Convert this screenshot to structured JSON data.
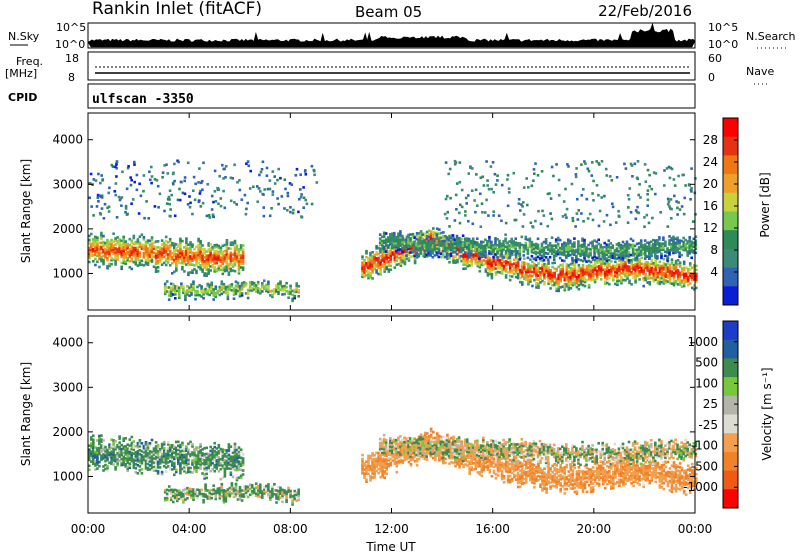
{
  "header": {
    "station": "Rankin Inlet (fitACF)",
    "beam": "Beam 05",
    "date": "22/Feb/2016"
  },
  "noise_panel": {
    "left_label": "N.Sky",
    "right_label": "N.Search",
    "left_ticks": [
      "10^5",
      "10^0"
    ],
    "right_ticks": [
      "10^5",
      "10^0"
    ]
  },
  "freq_panel": {
    "left_label_1": "Freq.",
    "left_label_2": "[MHz]",
    "right_label": "Nave",
    "left_ticks": [
      "18",
      "8"
    ],
    "right_ticks": [
      "60",
      "0"
    ]
  },
  "cpid_panel": {
    "label": "CPID",
    "program": "ulfscan -3350"
  },
  "colors": {
    "power_scale": [
      "#0a1ed8",
      "#2f64b4",
      "#3c8a78",
      "#2e8b57",
      "#78c850",
      "#c8d23c",
      "#f0a028",
      "#f07814",
      "#e63214",
      "#ff0000"
    ],
    "velocity_scale": [
      "#1e3cc8",
      "#2060a0",
      "#3c8c50",
      "#78c83c",
      "#b4b4a8",
      "#dcdcd2",
      "#f0a050",
      "#f08228",
      "#f05a14",
      "#ff0000"
    ]
  },
  "chart_data": [
    {
      "type": "heatmap",
      "title": "",
      "xlabel": "",
      "ylabel": "Slant Range [km]",
      "colorbar_label": "Power [dB]",
      "colorbar_ticks": [
        "4",
        "8",
        "12",
        "16",
        "20",
        "24",
        "28"
      ],
      "y_ticks": [
        "1000",
        "2000",
        "3000",
        "4000"
      ],
      "x_ticks": [
        "00:00",
        "04:00",
        "08:00",
        "12:00",
        "16:00",
        "20:00",
        "00:00"
      ],
      "xlim_hours": [
        0,
        24
      ],
      "ylim_km": [
        180,
        4600
      ],
      "bands": [
        {
          "start_h": 0.0,
          "end_h": 6.1,
          "center_km": [
            1500,
            1450,
            1350,
            1300
          ],
          "width_km": 700,
          "peak_db": 26
        },
        {
          "start_h": 3.0,
          "end_h": 8.3,
          "center_km": [
            600,
            600,
            650,
            550
          ],
          "width_km": 300,
          "peak_db": 18
        },
        {
          "start_h": 10.8,
          "end_h": 24.0,
          "center_km": [
            1100,
            1700,
            1200,
            900,
            1100,
            900
          ],
          "width_km": 600,
          "peak_db": 28
        },
        {
          "start_h": 11.5,
          "end_h": 24.0,
          "center_km": [
            1700,
            1600,
            1600,
            1500,
            1500,
            1600
          ],
          "width_km": 450,
          "peak_db": 12
        }
      ],
      "scatter_clouds": [
        {
          "start_h": 0.0,
          "end_h": 9.0,
          "min_km": 2200,
          "max_km": 3500,
          "db": 6
        },
        {
          "start_h": 14.0,
          "end_h": 24.0,
          "min_km": 2000,
          "max_km": 3500,
          "db": 8
        }
      ]
    },
    {
      "type": "heatmap",
      "title": "",
      "xlabel": "Time UT",
      "ylabel": "Slant Range [km]",
      "colorbar_label": "Velocity [m s⁻¹]",
      "colorbar_ticks": [
        "1000",
        "500",
        "100",
        "25",
        "-25",
        "-100",
        "-500",
        "-1000"
      ],
      "y_ticks": [
        "1000",
        "2000",
        "3000",
        "4000"
      ],
      "x_ticks": [
        "00:00",
        "04:00",
        "08:00",
        "12:00",
        "16:00",
        "20:00",
        "00:00"
      ],
      "xlim_hours": [
        0,
        24
      ],
      "ylim_km": [
        180,
        4600
      ],
      "bands": [
        {
          "start_h": 0.0,
          "end_h": 6.1,
          "center_km": [
            1500,
            1450,
            1350,
            1300
          ],
          "width_km": 700,
          "velocity": 150
        },
        {
          "start_h": 3.0,
          "end_h": 8.3,
          "center_km": [
            600,
            600,
            650,
            550
          ],
          "width_km": 300,
          "velocity": 80
        },
        {
          "start_h": 10.8,
          "end_h": 24.0,
          "center_km": [
            1100,
            1700,
            1200,
            900,
            1100,
            900
          ],
          "width_km": 600,
          "velocity": -250
        },
        {
          "start_h": 11.5,
          "end_h": 24.0,
          "center_km": [
            1700,
            1600,
            1600,
            1500,
            1500,
            1600
          ],
          "width_km": 450,
          "velocity": 0
        }
      ]
    }
  ]
}
